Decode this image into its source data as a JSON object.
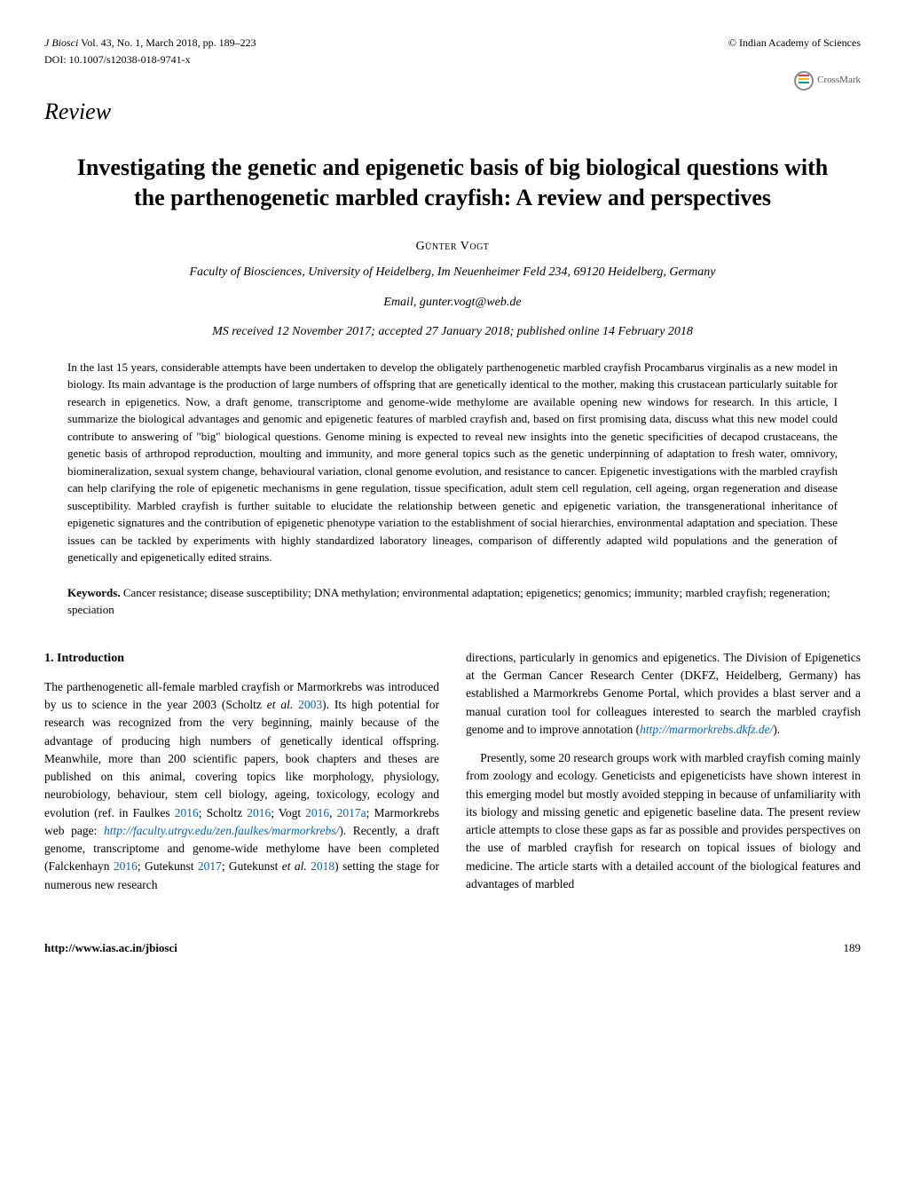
{
  "header": {
    "journal": "J Biosci",
    "volume": "Vol. 43, No. 1, March 2018, pp. 189–223",
    "copyright": "© Indian Academy of Sciences",
    "doi_label": "DOI:",
    "doi": "10.1007/s12038-018-9741-x",
    "crossmark": "CrossMark"
  },
  "review_label": "Review",
  "title": "Investigating the genetic and epigenetic basis of big biological questions with the parthenogenetic marbled crayfish: A review and perspectives",
  "author": "Günter Vogt",
  "affiliation": "Faculty of Biosciences, University of Heidelberg, Im Neuenheimer Feld 234, 69120 Heidelberg, Germany",
  "email": "Email, gunter.vogt@web.de",
  "dates": "MS received 12 November 2017; accepted 27 January 2018; published online 14 February 2018",
  "abstract": "In the last 15 years, considerable attempts have been undertaken to develop the obligately parthenogenetic marbled crayfish Procambarus virginalis as a new model in biology. Its main advantage is the production of large numbers of offspring that are genetically identical to the mother, making this crustacean particularly suitable for research in epigenetics. Now, a draft genome, transcriptome and genome-wide methylome are available opening new windows for research. In this article, I summarize the biological advantages and genomic and epigenetic features of marbled crayfish and, based on first promising data, discuss what this new model could contribute to answering of \"big\" biological questions. Genome mining is expected to reveal new insights into the genetic specificities of decapod crustaceans, the genetic basis of arthropod reproduction, moulting and immunity, and more general topics such as the genetic underpinning of adaptation to fresh water, omnivory, biomineralization, sexual system change, behavioural variation, clonal genome evolution, and resistance to cancer. Epigenetic investigations with the marbled crayfish can help clarifying the role of epigenetic mechanisms in gene regulation, tissue specification, adult stem cell regulation, cell ageing, organ regeneration and disease susceptibility. Marbled crayfish is further suitable to elucidate the relationship between genetic and epigenetic variation, the transgenerational inheritance of epigenetic signatures and the contribution of epigenetic phenotype variation to the establishment of social hierarchies, environmental adaptation and speciation. These issues can be tackled by experiments with highly standardized laboratory lineages, comparison of differently adapted wild populations and the generation of genetically and epigenetically edited strains.",
  "keywords_label": "Keywords.",
  "keywords": "Cancer resistance; disease susceptibility; DNA methylation; environmental adaptation; epigenetics; genomics; immunity; marbled crayfish; regeneration; speciation",
  "section_heading": "1.  Introduction",
  "left_col": {
    "p1_a": "The parthenogenetic all-female marbled crayfish or Marmorkrebs was introduced by us to science in the year 2003 (Scholtz ",
    "p1_b": "et al.",
    "p1_c": " ",
    "p1_y1": "2003",
    "p1_d": "). Its high potential for research was recognized from the very beginning, mainly because of the advantage of producing high numbers of genetically identical offspring. Meanwhile, more than 200 scientific papers, book chapters and theses are published on this animal, covering topics like morphology, physiology, neurobiology, behaviour, stem cell biology, ageing, toxicology, ecology and evolution (ref. in Faulkes ",
    "p1_y2": "2016",
    "p1_e": "; Scholtz ",
    "p1_y3": "2016",
    "p1_f": "; Vogt ",
    "p1_y4": "2016",
    "p1_g": ", ",
    "p1_y5": "2017a",
    "p1_h": "; Marmorkrebs web page: ",
    "p1_link1": "http://faculty.utrgv.edu/zen.faulkes/marmorkrebs/",
    "p1_i": "). Recently, a draft genome, transcriptome and genome-wide methylome have been completed (Falckenhayn ",
    "p1_y6": "2016",
    "p1_j": "; Gutekunst ",
    "p1_y7": "2017",
    "p1_k": "; Gutekunst ",
    "p1_l": "et al.",
    "p1_m": " ",
    "p1_y8": "2018",
    "p1_n": ") setting the stage for numerous new research"
  },
  "right_col": {
    "p1_a": "directions, particularly in genomics and epigenetics. The Division of Epigenetics at the German Cancer Research Center (DKFZ, Heidelberg, Germany) has established a Marmorkrebs Genome Portal, which provides a blast server and a manual curation tool for colleagues interested to search the marbled crayfish genome and to improve annotation (",
    "p1_link1": "http://marmorkrebs.dkfz.de/",
    "p1_b": ").",
    "p2": "Presently, some 20 research groups work with marbled crayfish coming mainly from zoology and ecology. Geneticists and epigeneticists have shown interest in this emerging model but mostly avoided stepping in because of unfamiliarity with its biology and missing genetic and epigenetic baseline data. The present review article attempts to close these gaps as far as possible and provides perspectives on the use of marbled crayfish for research on topical issues of biology and medicine. The article starts with a detailed account of the biological features and advantages of marbled"
  },
  "footer": {
    "url": "http://www.ias.ac.in/jbiosci",
    "page": "189"
  }
}
